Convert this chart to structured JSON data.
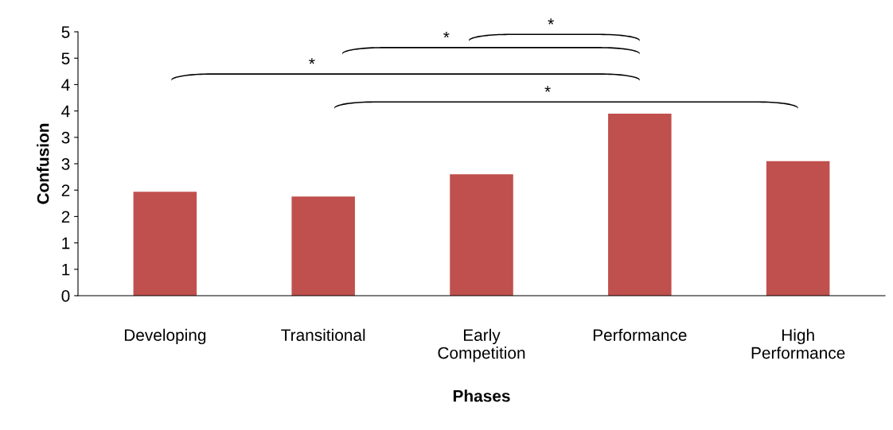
{
  "chart_data": {
    "type": "bar",
    "xlabel": "Phases",
    "ylabel": "Confusion",
    "categories": [
      "Developing",
      "Transitional",
      "Early\nCompetition",
      "Performance",
      "High\nPerformance"
    ],
    "values": [
      1.97,
      1.88,
      2.3,
      3.45,
      2.55
    ],
    "color": "#c0504d",
    "ylim": [
      0,
      5
    ],
    "yticks": [
      0,
      {
        "value": 0.5,
        "label": "1"
      },
      1,
      {
        "value": 1.5,
        "label": "2"
      },
      2,
      {
        "value": 2.5,
        "label": "3"
      },
      3,
      {
        "value": 3.5,
        "label": "4"
      },
      4,
      {
        "value": 4.5,
        "label": "5"
      },
      5
    ],
    "grid": false,
    "legend": false,
    "annotations": [
      "*",
      "*",
      "*",
      "*"
    ]
  }
}
